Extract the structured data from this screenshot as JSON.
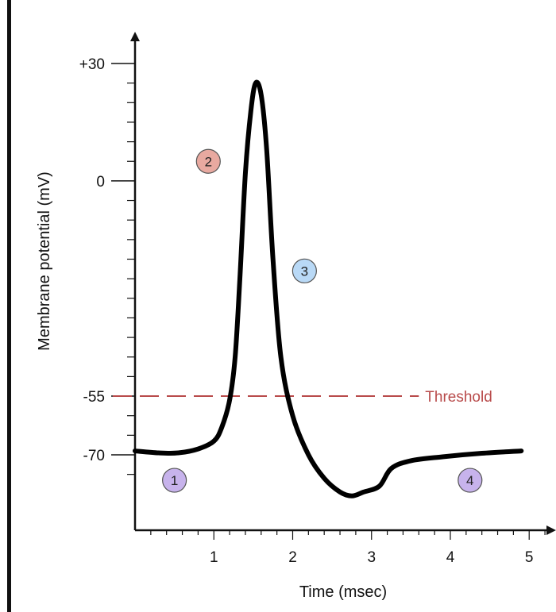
{
  "chart_data": {
    "type": "line",
    "xlabel": "Time (msec)",
    "ylabel": "Membrane potential (mV)",
    "xlim": [
      0,
      5.3
    ],
    "ylim": [
      -80,
      32
    ],
    "x_ticks": [
      1,
      2,
      3,
      4,
      5
    ],
    "x_minor_step": 0.2,
    "y_ticks": [
      {
        "value": 30,
        "label": "+30"
      },
      {
        "value": 0,
        "label": "0"
      },
      {
        "value": -55,
        "label": "-55"
      },
      {
        "value": -70,
        "label": "-70"
      }
    ],
    "y_minor_ticks": [
      25,
      20,
      15,
      10,
      5,
      -5,
      -10,
      -15,
      -20,
      -25,
      -30,
      -35,
      -40,
      -45,
      -50,
      -60,
      -65,
      -75
    ],
    "series": [
      {
        "color": "#000000",
        "points": [
          [
            0.0,
            -69
          ],
          [
            0.3,
            -69.5
          ],
          [
            0.55,
            -69.5
          ],
          [
            0.8,
            -68.5
          ],
          [
            1.0,
            -66.5
          ],
          [
            1.1,
            -63
          ],
          [
            1.2,
            -56
          ],
          [
            1.27,
            -45
          ],
          [
            1.33,
            -25
          ],
          [
            1.4,
            2
          ],
          [
            1.47,
            18
          ],
          [
            1.53,
            25
          ],
          [
            1.6,
            22
          ],
          [
            1.67,
            8
          ],
          [
            1.75,
            -20
          ],
          [
            1.85,
            -45
          ],
          [
            2.0,
            -60
          ],
          [
            2.2,
            -70
          ],
          [
            2.4,
            -76
          ],
          [
            2.6,
            -79.5
          ],
          [
            2.75,
            -80.5
          ],
          [
            2.9,
            -79.5
          ],
          [
            3.1,
            -78
          ],
          [
            3.25,
            -73.5
          ],
          [
            3.5,
            -71.5
          ],
          [
            3.9,
            -70.5
          ],
          [
            4.4,
            -69.6
          ],
          [
            4.9,
            -69
          ]
        ]
      }
    ],
    "threshold": {
      "value": -55,
      "label": "Threshold",
      "color": "#b84a4a",
      "x_end": 3.6
    },
    "phase_markers": [
      {
        "label": "1",
        "x": 0.5,
        "y": -76.5,
        "color": "#c7b3ec"
      },
      {
        "label": "2",
        "x": 0.93,
        "y": 5,
        "color": "#e8a9a0"
      },
      {
        "label": "3",
        "x": 2.15,
        "y": -23,
        "color": "#b9d9f6"
      },
      {
        "label": "4",
        "x": 4.25,
        "y": -76.5,
        "color": "#c7b3ec"
      }
    ]
  }
}
